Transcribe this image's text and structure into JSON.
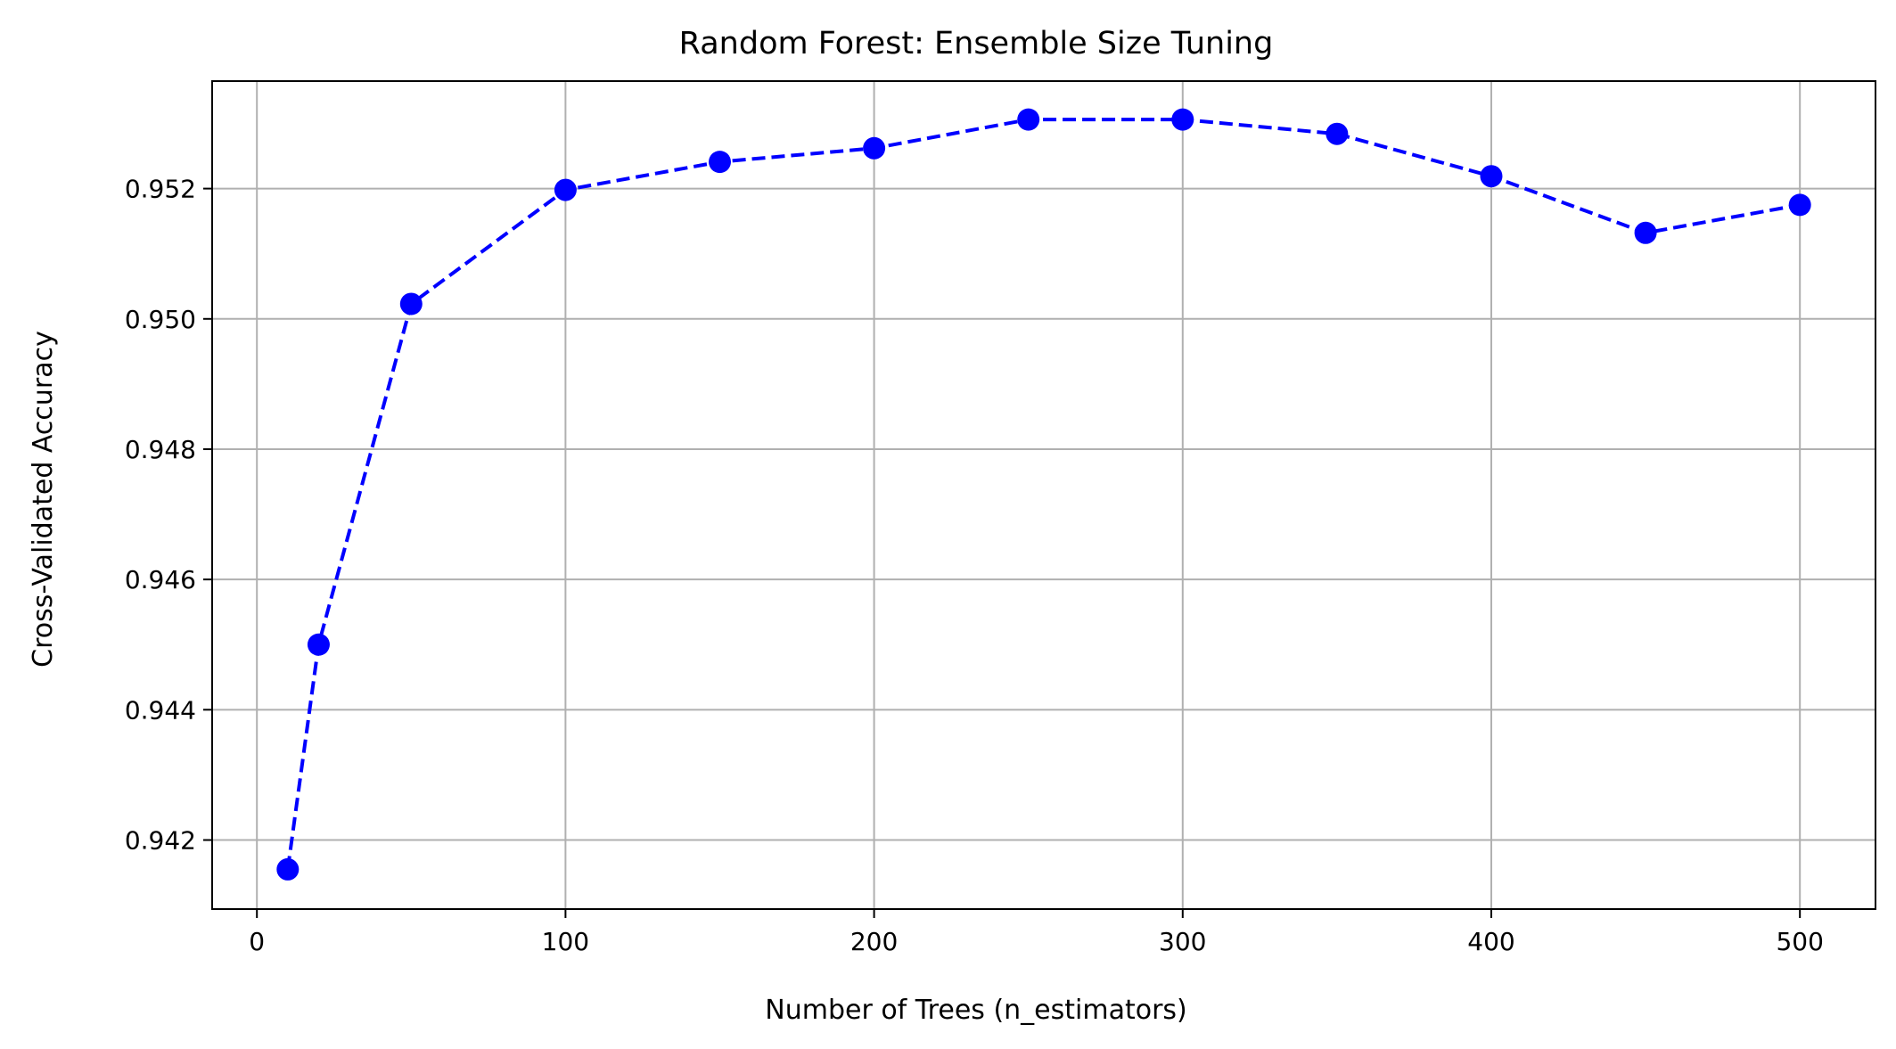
{
  "chart_data": {
    "type": "line",
    "title": "Random Forest: Ensemble Size Tuning",
    "xlabel": "Number of Trees (n_estimators)",
    "ylabel": "Cross-Validated Accuracy",
    "xlim": [
      -14.5,
      524.5
    ],
    "ylim": [
      0.94094,
      0.95365
    ],
    "xticks": [
      0,
      100,
      200,
      300,
      400,
      500
    ],
    "xtick_labels": [
      "0",
      "100",
      "200",
      "300",
      "400",
      "500"
    ],
    "yticks": [
      0.942,
      0.944,
      0.946,
      0.948,
      0.95,
      0.952
    ],
    "ytick_labels": [
      "0.942",
      "0.944",
      "0.946",
      "0.948",
      "0.950",
      "0.952"
    ],
    "grid": true,
    "series": [
      {
        "color": "#0000ff",
        "line_style": "dashed",
        "marker": "circle",
        "x": [
          10,
          20,
          50,
          100,
          150,
          200,
          250,
          300,
          350,
          400,
          450,
          500
        ],
        "values": [
          0.94155,
          0.945,
          0.95023,
          0.95198,
          0.95241,
          0.95262,
          0.95306,
          0.95306,
          0.95284,
          0.95219,
          0.95132,
          0.95175
        ]
      }
    ]
  }
}
